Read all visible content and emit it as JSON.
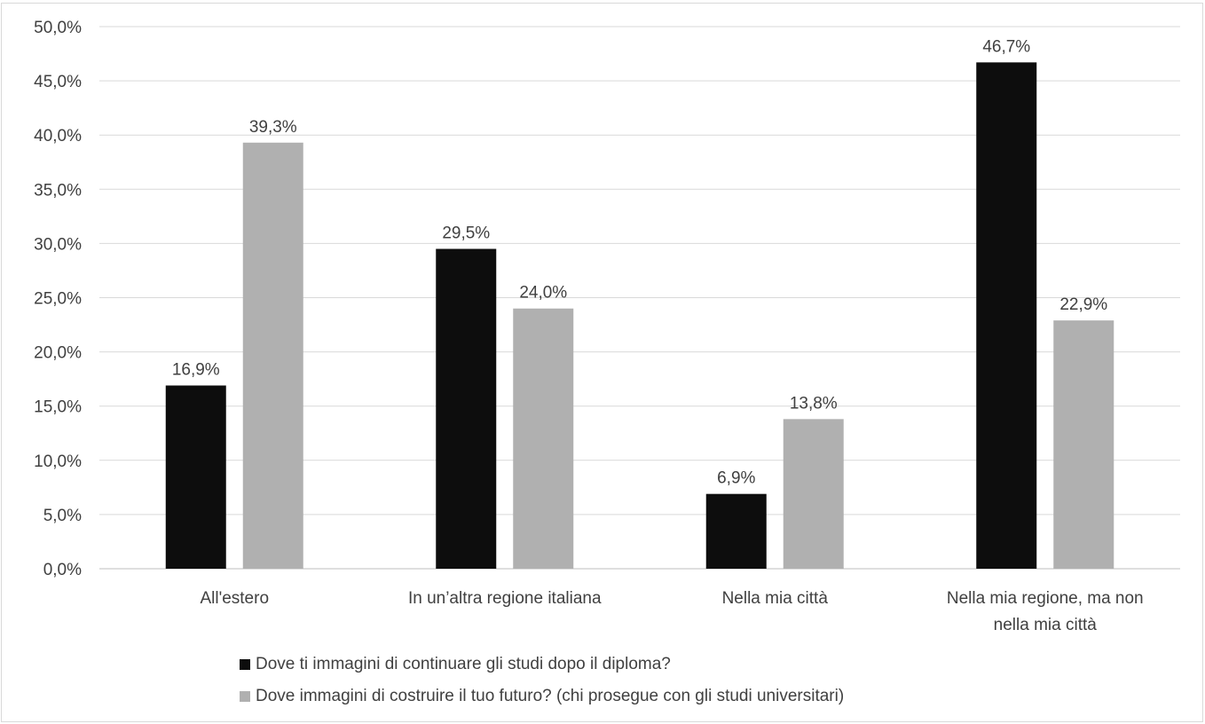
{
  "chart_data": {
    "type": "bar",
    "categories": [
      [
        "All'estero"
      ],
      [
        "In un’altra regione italiana"
      ],
      [
        "Nella mia città"
      ],
      [
        "Nella mia regione, ma non",
        "nella mia città"
      ]
    ],
    "series": [
      {
        "name": "Dove ti immagini di continuare gli studi dopo il diploma?",
        "color": "#0d0d0d",
        "values": [
          16.9,
          29.5,
          6.9,
          46.7
        ],
        "labels": [
          "16,9%",
          "29,5%",
          "6,9%",
          "46,7%"
        ]
      },
      {
        "name": "Dove immagini di costruire il tuo futuro? (chi prosegue con gli studi universitari)",
        "color": "#b0b0b0",
        "values": [
          39.3,
          24.0,
          13.8,
          22.9
        ],
        "labels": [
          "39,3%",
          "24,0%",
          "13,8%",
          "22,9%"
        ]
      }
    ],
    "ylim": [
      0,
      50
    ],
    "yticks": [
      0,
      5,
      10,
      15,
      20,
      25,
      30,
      35,
      40,
      45,
      50
    ],
    "ytick_labels": [
      "0,0%",
      "5,0%",
      "10,0%",
      "15,0%",
      "20,0%",
      "25,0%",
      "30,0%",
      "35,0%",
      "40,0%",
      "45,0%",
      "50,0%"
    ],
    "grid": true,
    "legend_position": "bottom",
    "gridline_color": "#d9d9d9",
    "axis_color": "#bfbfbf",
    "text_color": "#404040"
  }
}
